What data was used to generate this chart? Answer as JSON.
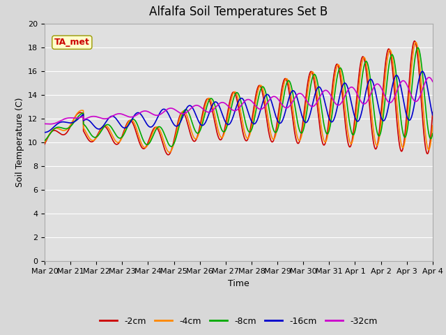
{
  "title": "Alfalfa Soil Temperatures Set B",
  "xlabel": "Time",
  "ylabel": "Soil Temperature (C)",
  "xlim_start": 0,
  "xlim_end": 360,
  "ylim": [
    0,
    20
  ],
  "yticks": [
    0,
    2,
    4,
    6,
    8,
    10,
    12,
    14,
    16,
    18,
    20
  ],
  "xtick_labels": [
    "Mar 20",
    "Mar 21",
    "Mar 22",
    "Mar 23",
    "Mar 24",
    "Mar 25",
    "Mar 26",
    "Mar 27",
    "Mar 28",
    "Mar 29",
    "Mar 30",
    "Mar 31",
    "Apr 1",
    "Apr 2",
    "Apr 3",
    "Apr 4"
  ],
  "xtick_positions": [
    0,
    24,
    48,
    72,
    96,
    120,
    144,
    168,
    192,
    216,
    240,
    264,
    288,
    312,
    336,
    360
  ],
  "series_colors": [
    "#cc0000",
    "#ff8800",
    "#00aa00",
    "#0000cc",
    "#cc00cc"
  ],
  "series_labels": [
    "-2cm",
    "-4cm",
    "-8cm",
    "-16cm",
    "-32cm"
  ],
  "annotation_text": "TA_met",
  "annotation_color": "#cc0000",
  "annotation_bg": "#ffffcc",
  "plot_bg_color": "#e0e0e0",
  "fig_bg_color": "#d8d8d8",
  "grid_color": "#ffffff",
  "title_fontsize": 12,
  "axis_label_fontsize": 9,
  "tick_fontsize": 8,
  "legend_fontsize": 9
}
